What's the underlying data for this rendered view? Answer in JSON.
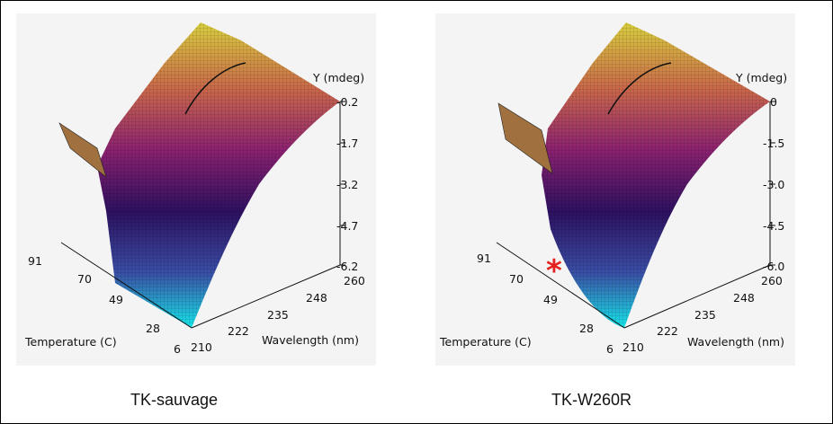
{
  "colors": {
    "page_bg": "#ffffff",
    "panel_bg": "#f4f4f4",
    "asterisk": "#e5211d"
  },
  "chart_data": [
    {
      "type": "surface3d",
      "caption": "TK-sauvage",
      "xlabel": "Wavelength (nm)",
      "ylabel": "Temperature (C)",
      "zlabel": "Y (mdeg)",
      "x_ticks": [
        "210",
        "222",
        "235",
        "248",
        "260"
      ],
      "y_ticks": [
        "6",
        "28",
        "49",
        "70",
        "91"
      ],
      "z_ticks": [
        "-0.2",
        "-1.7",
        "-3.2",
        "-4.7",
        "-6.2"
      ],
      "xlim": [
        210,
        260
      ],
      "ylim": [
        6,
        91
      ],
      "zlim": [
        -6.2,
        -0.2
      ],
      "colormap": [
        "#16e6ea",
        "#3a4fa6",
        "#2d1060",
        "#8a2170",
        "#c9674b",
        "#d8cf3e"
      ],
      "marker": null
    },
    {
      "type": "surface3d",
      "caption": "TK-W260R",
      "xlabel": "Wavelength (nm)",
      "ylabel": "Temperature (C)",
      "zlabel": "Y (mdeg)",
      "x_ticks": [
        "210",
        "222",
        "235",
        "248",
        "260"
      ],
      "y_ticks": [
        "6",
        "28",
        "49",
        "70",
        "91"
      ],
      "z_ticks": [
        "0",
        "-1.5",
        "-3.0",
        "-4.5",
        "-6.0"
      ],
      "xlim": [
        210,
        260
      ],
      "ylim": [
        6,
        91
      ],
      "zlim": [
        -6.0,
        0
      ],
      "colormap": [
        "#16e6ea",
        "#3a4fa6",
        "#2d1060",
        "#8a2170",
        "#c9674b",
        "#d8cf3e"
      ],
      "marker": "*"
    }
  ]
}
